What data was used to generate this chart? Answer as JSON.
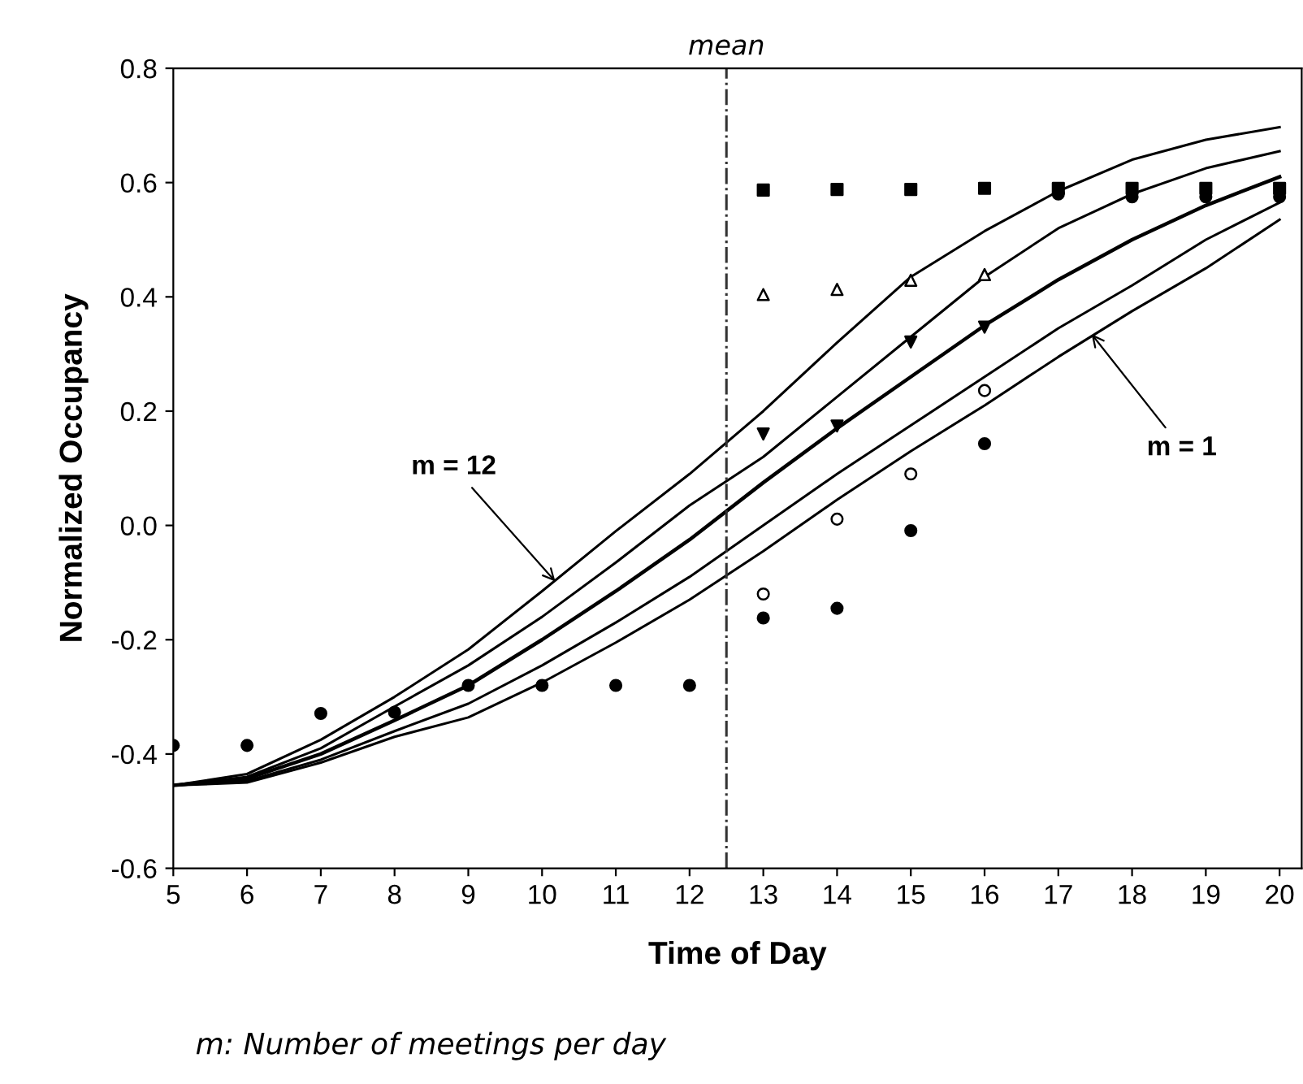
{
  "chart_data": {
    "type": "scatter",
    "xlabel": "Time of Day",
    "ylabel": "Normalized Occupancy",
    "xlim": [
      5,
      20.3
    ],
    "ylim": [
      -0.6,
      0.8
    ],
    "xticks": [
      5,
      6,
      7,
      8,
      9,
      10,
      11,
      12,
      13,
      14,
      15,
      16,
      17,
      18,
      19,
      20
    ],
    "yticks": [
      {
        "value": -0.6,
        "label": "-0.6"
      },
      {
        "value": -0.4,
        "label": "-0.4"
      },
      {
        "value": -0.2,
        "label": "-0.2"
      },
      {
        "value": 0,
        "label": "0.0"
      },
      {
        "value": 0.2,
        "label": "0.2"
      },
      {
        "value": 0.4,
        "label": "0.4"
      },
      {
        "value": 0.6,
        "label": "0.6"
      },
      {
        "value": 0.8,
        "label": "0.8"
      }
    ],
    "grid": false,
    "x": [
      5,
      6,
      7,
      8,
      9,
      10,
      11,
      12,
      13,
      14,
      15,
      16,
      17,
      18,
      19,
      20
    ],
    "series": [
      {
        "type": "line",
        "color": "#000000",
        "marker": "none",
        "line_style": "solid",
        "values": [
          -0.455,
          -0.435,
          -0.375,
          -0.3,
          -0.217,
          -0.115,
          -0.01,
          0.09,
          0.2,
          0.32,
          0.435,
          0.515,
          0.585,
          0.64,
          0.675,
          0.697
        ]
      },
      {
        "type": "line",
        "color": "#000000",
        "marker": "none",
        "line_style": "solid",
        "values": [
          -0.455,
          -0.44,
          -0.39,
          -0.317,
          -0.245,
          -0.16,
          -0.065,
          0.035,
          0.12,
          0.225,
          0.33,
          0.435,
          0.52,
          0.58,
          0.625,
          0.655
        ]
      },
      {
        "type": "line",
        "color": "#000000",
        "marker": "none",
        "line_style": "solid",
        "values": [
          -0.455,
          -0.443,
          -0.4,
          -0.341,
          -0.28,
          -0.2,
          -0.115,
          -0.025,
          0.075,
          0.17,
          0.26,
          0.35,
          0.43,
          0.5,
          0.56,
          0.61
        ]
      },
      {
        "type": "line",
        "color": "#000000",
        "marker": "none",
        "line_style": "solid",
        "values": [
          -0.455,
          -0.447,
          -0.41,
          -0.36,
          -0.312,
          -0.245,
          -0.17,
          -0.09,
          0.0,
          0.09,
          0.175,
          0.26,
          0.345,
          0.42,
          0.5,
          0.565
        ]
      },
      {
        "type": "line",
        "color": "#000000",
        "marker": "none",
        "line_style": "solid",
        "values": [
          -0.455,
          -0.45,
          -0.415,
          -0.37,
          -0.336,
          -0.275,
          -0.205,
          -0.13,
          -0.045,
          0.045,
          0.13,
          0.21,
          0.295,
          0.375,
          0.45,
          0.535
        ]
      },
      {
        "color": "#000000",
        "marker": "square",
        "values": [
          null,
          null,
          null,
          null,
          null,
          null,
          null,
          null,
          0.587,
          0.588,
          0.588,
          0.59,
          0.59,
          0.59,
          0.59,
          0.59
        ]
      },
      {
        "color": "#000000",
        "marker": "triangle-open",
        "values": [
          null,
          null,
          null,
          null,
          null,
          null,
          null,
          null,
          0.404,
          0.413,
          0.429,
          0.439,
          null,
          null,
          null,
          null
        ]
      },
      {
        "color": "#000000",
        "marker": "triangle-down",
        "values": [
          null,
          null,
          null,
          null,
          null,
          null,
          null,
          null,
          0.16,
          0.174,
          0.321,
          0.347,
          null,
          null,
          null,
          null
        ]
      },
      {
        "color": "#000000",
        "marker": "circle-open",
        "values": [
          null,
          null,
          null,
          null,
          null,
          null,
          null,
          null,
          -0.12,
          0.011,
          0.09,
          0.236,
          null,
          null,
          null,
          null
        ]
      },
      {
        "color": "#000000",
        "marker": "circle",
        "values": [
          -0.385,
          -0.385,
          -0.329,
          -0.327,
          -0.28,
          -0.28,
          -0.28,
          -0.28,
          -0.162,
          -0.145,
          -0.009,
          0.143,
          0.58,
          0.575,
          0.575,
          0.575
        ]
      }
    ],
    "ref_lines": [
      {
        "axis": "x",
        "value": 12.5,
        "label": "mean",
        "color": "#333333",
        "line_style": "dashdot"
      }
    ],
    "annotations": [
      {
        "text": "m = 12",
        "x": 10.18,
        "y": -0.098
      },
      {
        "text": "m = 1",
        "x": 17.45,
        "y": 0.335
      },
      "m: Number of meetings per day"
    ]
  }
}
